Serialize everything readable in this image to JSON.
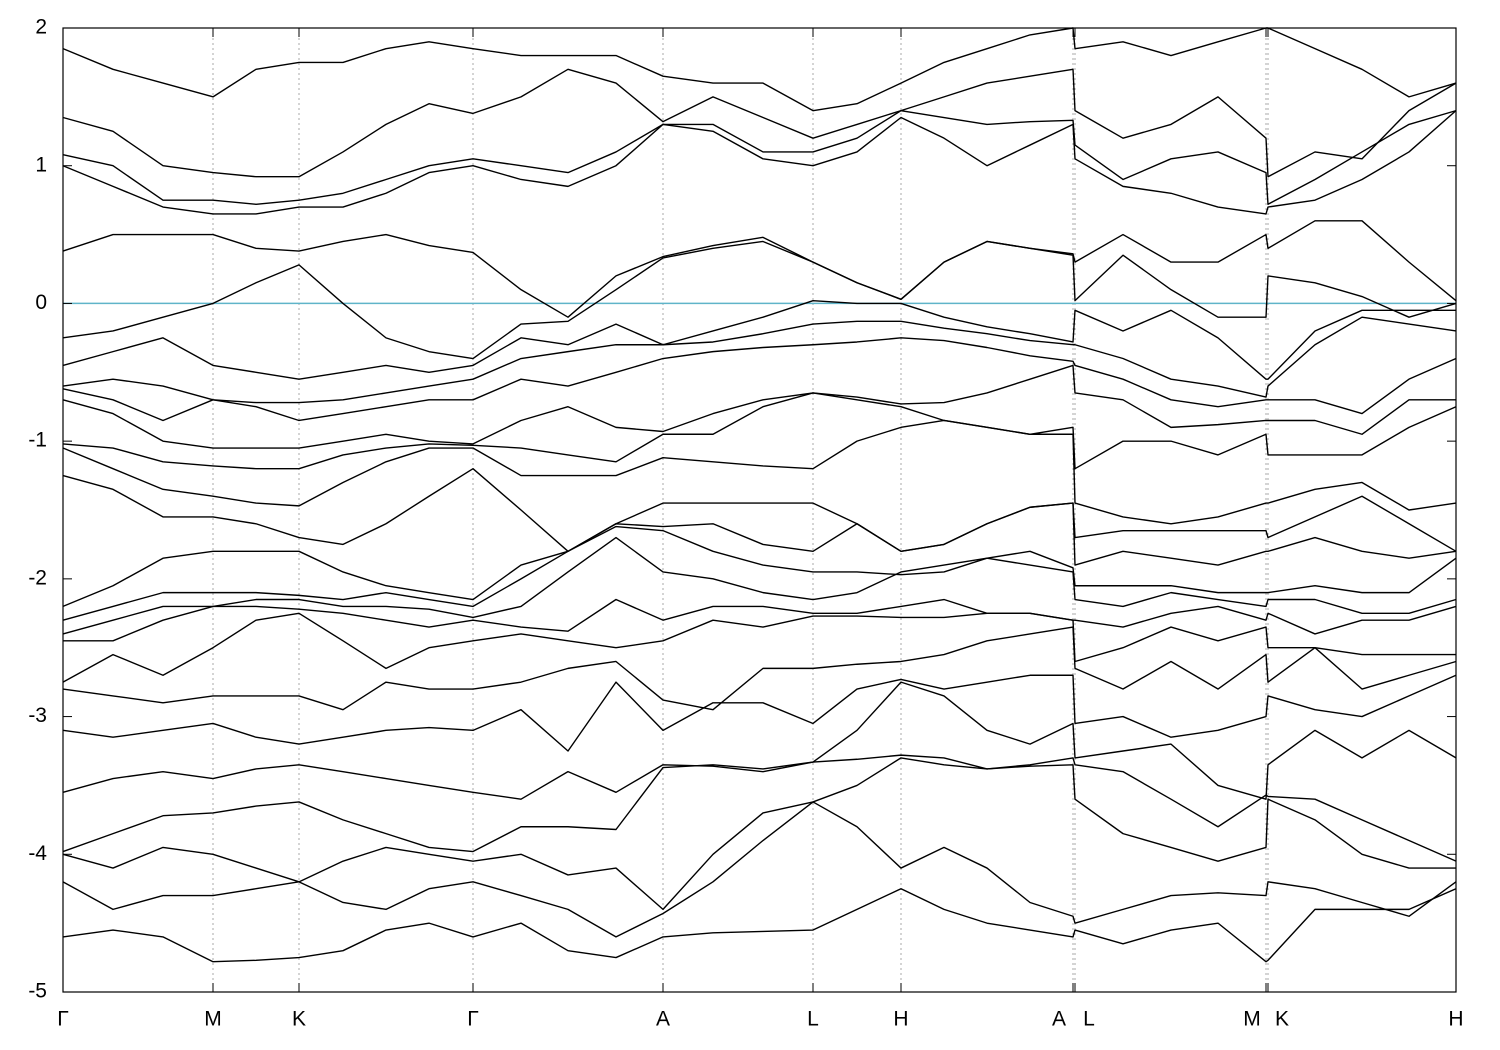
{
  "chart_data": {
    "type": "line",
    "x": [
      0,
      50,
      100,
      150,
      193,
      236,
      280,
      323,
      366,
      410,
      458,
      505,
      553,
      600,
      650,
      700,
      750,
      794,
      838,
      881,
      924,
      967,
      1010,
      1012,
      1060,
      1108,
      1155,
      1203,
      1205,
      1252,
      1299,
      1346,
      1393
    ],
    "xlim": [
      0,
      1393
    ],
    "ylim": [
      -5,
      2
    ],
    "yticks": [
      -5,
      -4,
      -3,
      -2,
      -1,
      0,
      1,
      2
    ],
    "xticks": [
      {
        "value": 0,
        "label": "Γ"
      },
      {
        "value": 150,
        "label": "M"
      },
      {
        "value": 236,
        "label": "K"
      },
      {
        "value": 410,
        "label": "Γ"
      },
      {
        "value": 600,
        "label": "A"
      },
      {
        "value": 750,
        "label": "L"
      },
      {
        "value": 838,
        "label": "H"
      },
      {
        "value": 1010,
        "label": "A"
      },
      {
        "value": 1012,
        "label": "L"
      },
      {
        "value": 1203,
        "label": "M"
      },
      {
        "value": 1205,
        "label": "K"
      },
      {
        "value": 1393,
        "label": "H"
      }
    ],
    "grid": "x",
    "hline": {
      "value": 0,
      "color": "#5fb4c9"
    },
    "series": [
      {
        "color": "#000000",
        "values": [
          -4.6,
          -4.55,
          -4.6,
          -4.78,
          -4.77,
          -4.75,
          -4.7,
          -4.55,
          -4.5,
          -4.6,
          -4.5,
          -4.7,
          -4.75,
          -4.6,
          -4.57,
          -4.56,
          -4.55,
          -4.4,
          -4.25,
          -4.4,
          -4.5,
          -4.55,
          -4.6,
          -4.55,
          -4.65,
          -4.55,
          -4.5,
          -4.78,
          -4.77,
          -4.4,
          -4.4,
          -4.4,
          -4.25
        ]
      },
      {
        "color": "#000000",
        "values": [
          -4.2,
          -4.4,
          -4.3,
          -4.3,
          -4.25,
          -4.2,
          -4.35,
          -4.4,
          -4.25,
          -4.2,
          -4.3,
          -4.4,
          -4.6,
          -4.43,
          -4.2,
          -3.9,
          -3.62,
          -3.8,
          -4.1,
          -3.95,
          -4.1,
          -4.35,
          -4.45,
          -4.5,
          -4.4,
          -4.3,
          -4.28,
          -4.3,
          -4.2,
          -4.25,
          -4.35,
          -4.45,
          -4.2
        ]
      },
      {
        "color": "#000000",
        "values": [
          -4.0,
          -4.1,
          -3.95,
          -4.0,
          -4.1,
          -4.2,
          -4.05,
          -3.95,
          -4.0,
          -4.05,
          -4.0,
          -4.15,
          -4.1,
          -4.4,
          -4.0,
          -3.7,
          -3.62,
          -3.5,
          -3.3,
          -3.35,
          -3.38,
          -3.36,
          -3.35,
          -3.6,
          -3.85,
          -3.95,
          -4.05,
          -3.95,
          -3.6,
          -3.75,
          -4.0,
          -4.1,
          -4.1
        ]
      },
      {
        "color": "#000000",
        "values": [
          -3.98,
          -3.85,
          -3.72,
          -3.7,
          -3.65,
          -3.62,
          -3.75,
          -3.85,
          -3.95,
          -3.98,
          -3.8,
          -3.8,
          -3.82,
          -3.37,
          -3.35,
          -3.38,
          -3.33,
          -3.31,
          -3.28,
          -3.3,
          -3.38,
          -3.35,
          -3.3,
          -3.35,
          -3.4,
          -3.6,
          -3.8,
          -3.57,
          -3.58,
          -3.6,
          -3.75,
          -3.9,
          -4.05
        ]
      },
      {
        "color": "#000000",
        "values": [
          -3.55,
          -3.45,
          -3.4,
          -3.45,
          -3.38,
          -3.35,
          -3.4,
          -3.45,
          -3.5,
          -3.55,
          -3.6,
          -3.4,
          -3.55,
          -3.35,
          -3.36,
          -3.4,
          -3.33,
          -3.1,
          -2.75,
          -2.85,
          -3.1,
          -3.2,
          -3.05,
          -3.3,
          -3.25,
          -3.2,
          -3.5,
          -3.6,
          -3.35,
          -3.1,
          -3.3,
          -3.1,
          -3.3
        ]
      },
      {
        "color": "#000000",
        "values": [
          -3.1,
          -3.15,
          -3.1,
          -3.05,
          -3.15,
          -3.2,
          -3.15,
          -3.1,
          -3.08,
          -3.1,
          -2.95,
          -3.25,
          -2.75,
          -3.1,
          -2.9,
          -2.9,
          -3.05,
          -2.8,
          -2.73,
          -2.8,
          -2.75,
          -2.7,
          -2.7,
          -3.05,
          -3.0,
          -3.15,
          -3.1,
          -3.0,
          -2.85,
          -2.95,
          -3.0,
          -2.85,
          -2.7
        ]
      },
      {
        "color": "#000000",
        "values": [
          -2.8,
          -2.85,
          -2.9,
          -2.85,
          -2.85,
          -2.85,
          -2.95,
          -2.75,
          -2.8,
          -2.8,
          -2.75,
          -2.65,
          -2.6,
          -2.88,
          -2.95,
          -2.65,
          -2.65,
          -2.62,
          -2.6,
          -2.55,
          -2.45,
          -2.4,
          -2.35,
          -2.65,
          -2.8,
          -2.6,
          -2.8,
          -2.55,
          -2.75,
          -2.5,
          -2.8,
          -2.7,
          -2.6
        ]
      },
      {
        "color": "#000000",
        "values": [
          -2.75,
          -2.55,
          -2.7,
          -2.5,
          -2.3,
          -2.25,
          -2.45,
          -2.65,
          -2.5,
          -2.45,
          -2.4,
          -2.45,
          -2.5,
          -2.45,
          -2.3,
          -2.35,
          -2.27,
          -2.27,
          -2.28,
          -2.28,
          -2.25,
          -2.25,
          -2.3,
          -2.6,
          -2.5,
          -2.35,
          -2.45,
          -2.35,
          -2.5,
          -2.5,
          -2.55,
          -2.55,
          -2.55
        ]
      },
      {
        "color": "#000000",
        "values": [
          -2.45,
          -2.45,
          -2.3,
          -2.2,
          -2.2,
          -2.22,
          -2.25,
          -2.3,
          -2.35,
          -2.3,
          -2.35,
          -2.38,
          -2.15,
          -2.3,
          -2.2,
          -2.2,
          -2.25,
          -2.25,
          -2.2,
          -2.15,
          -2.25,
          -2.25,
          -2.3,
          -2.3,
          -2.35,
          -2.25,
          -2.2,
          -2.3,
          -2.25,
          -2.4,
          -2.3,
          -2.3,
          -2.2
        ]
      },
      {
        "color": "#000000",
        "values": [
          -2.4,
          -2.3,
          -2.2,
          -2.2,
          -2.15,
          -2.15,
          -2.2,
          -2.2,
          -2.22,
          -2.28,
          -2.2,
          -1.95,
          -1.7,
          -1.95,
          -2.0,
          -2.1,
          -2.15,
          -2.1,
          -1.95,
          -1.9,
          -1.85,
          -1.9,
          -1.95,
          -2.15,
          -2.2,
          -2.1,
          -2.15,
          -2.2,
          -2.15,
          -2.15,
          -2.25,
          -2.25,
          -2.15
        ]
      },
      {
        "color": "#000000",
        "values": [
          -2.3,
          -2.2,
          -2.1,
          -2.1,
          -2.1,
          -2.12,
          -2.15,
          -2.1,
          -2.15,
          -2.2,
          -2.0,
          -1.8,
          -1.62,
          -1.65,
          -1.8,
          -1.9,
          -1.95,
          -1.95,
          -1.97,
          -1.95,
          -1.85,
          -1.8,
          -1.92,
          -2.05,
          -2.05,
          -2.05,
          -2.1,
          -2.1,
          -2.1,
          -2.05,
          -2.1,
          -2.1,
          -1.85
        ]
      },
      {
        "color": "#000000",
        "values": [
          -2.2,
          -2.05,
          -1.85,
          -1.8,
          -1.8,
          -1.8,
          -1.95,
          -2.05,
          -2.1,
          -2.15,
          -1.9,
          -1.8,
          -1.6,
          -1.62,
          -1.6,
          -1.75,
          -1.8,
          -1.6,
          -1.8,
          -1.75,
          -1.6,
          -1.48,
          -1.45,
          -1.9,
          -1.8,
          -1.85,
          -1.9,
          -1.8,
          -1.8,
          -1.7,
          -1.8,
          -1.85,
          -1.8
        ]
      },
      {
        "color": "#000000",
        "values": [
          -1.25,
          -1.35,
          -1.55,
          -1.55,
          -1.6,
          -1.7,
          -1.75,
          -1.6,
          -1.4,
          -1.2,
          -1.5,
          -1.8,
          -1.6,
          -1.45,
          -1.45,
          -1.45,
          -1.45,
          -1.6,
          -1.8,
          -1.75,
          -1.6,
          -1.48,
          -1.45,
          -1.7,
          -1.65,
          -1.65,
          -1.65,
          -1.65,
          -1.7,
          -1.55,
          -1.4,
          -1.6,
          -1.8
        ]
      },
      {
        "color": "#000000",
        "values": [
          -1.05,
          -1.2,
          -1.35,
          -1.4,
          -1.45,
          -1.47,
          -1.3,
          -1.15,
          -1.05,
          -1.05,
          -1.25,
          -1.25,
          -1.25,
          -1.12,
          -1.15,
          -1.18,
          -1.2,
          -1.0,
          -0.9,
          -0.85,
          -0.9,
          -0.95,
          -0.95,
          -1.45,
          -1.55,
          -1.6,
          -1.55,
          -1.45,
          -1.45,
          -1.35,
          -1.3,
          -1.5,
          -1.45
        ]
      },
      {
        "color": "#000000",
        "values": [
          -1.02,
          -1.05,
          -1.15,
          -1.18,
          -1.2,
          -1.2,
          -1.1,
          -1.05,
          -1.02,
          -1.03,
          -1.05,
          -1.1,
          -1.15,
          -0.95,
          -0.95,
          -0.75,
          -0.65,
          -0.7,
          -0.75,
          -0.85,
          -0.9,
          -0.95,
          -0.9,
          -1.2,
          -1.0,
          -1.0,
          -1.1,
          -0.95,
          -1.1,
          -1.1,
          -1.1,
          -0.9,
          -0.75
        ]
      },
      {
        "color": "#000000",
        "values": [
          -0.7,
          -0.8,
          -1.0,
          -1.05,
          -1.05,
          -1.05,
          -1.0,
          -0.95,
          -1.0,
          -1.02,
          -0.85,
          -0.75,
          -0.9,
          -0.93,
          -0.8,
          -0.7,
          -0.65,
          -0.68,
          -0.73,
          -0.72,
          -0.65,
          -0.55,
          -0.45,
          -0.65,
          -0.7,
          -0.9,
          -0.88,
          -0.85,
          -0.85,
          -0.85,
          -0.95,
          -0.7,
          -0.7
        ]
      },
      {
        "color": "#000000",
        "values": [
          -0.62,
          -0.7,
          -0.85,
          -0.7,
          -0.75,
          -0.85,
          -0.8,
          -0.75,
          -0.7,
          -0.7,
          -0.55,
          -0.6,
          -0.5,
          -0.4,
          -0.35,
          -0.32,
          -0.3,
          -0.28,
          -0.25,
          -0.27,
          -0.32,
          -0.38,
          -0.42,
          -0.45,
          -0.55,
          -0.7,
          -0.75,
          -0.7,
          -0.7,
          -0.7,
          -0.8,
          -0.55,
          -0.4
        ]
      },
      {
        "color": "#000000",
        "values": [
          -0.6,
          -0.55,
          -0.6,
          -0.7,
          -0.72,
          -0.72,
          -0.7,
          -0.65,
          -0.6,
          -0.55,
          -0.4,
          -0.35,
          -0.3,
          -0.3,
          -0.28,
          -0.22,
          -0.15,
          -0.13,
          -0.13,
          -0.18,
          -0.22,
          -0.27,
          -0.3,
          -0.3,
          -0.4,
          -0.55,
          -0.6,
          -0.68,
          -0.6,
          -0.3,
          -0.1,
          -0.15,
          -0.2
        ]
      },
      {
        "color": "#000000",
        "values": [
          -0.45,
          -0.35,
          -0.25,
          -0.45,
          -0.5,
          -0.55,
          -0.5,
          -0.45,
          -0.5,
          -0.45,
          -0.25,
          -0.3,
          -0.15,
          -0.3,
          -0.2,
          -0.1,
          0.02,
          0.0,
          0.0,
          -0.1,
          -0.17,
          -0.22,
          -0.28,
          -0.05,
          -0.2,
          -0.05,
          -0.25,
          -0.55,
          -0.55,
          -0.2,
          -0.05,
          -0.05,
          -0.05
        ]
      },
      {
        "color": "#000000",
        "values": [
          -0.25,
          -0.2,
          -0.1,
          0.0,
          0.15,
          0.28,
          0.0,
          -0.25,
          -0.35,
          -0.4,
          -0.15,
          -0.13,
          0.1,
          0.33,
          0.4,
          0.45,
          0.3,
          0.15,
          0.03,
          0.3,
          0.45,
          0.4,
          0.35,
          0.02,
          0.35,
          0.1,
          -0.1,
          -0.1,
          0.2,
          0.15,
          0.05,
          -0.1,
          0.0
        ]
      },
      {
        "color": "#000000",
        "values": [
          0.38,
          0.5,
          0.5,
          0.5,
          0.4,
          0.38,
          0.45,
          0.5,
          0.42,
          0.37,
          0.1,
          -0.1,
          0.2,
          0.34,
          0.42,
          0.48,
          0.3,
          0.15,
          0.03,
          0.3,
          0.45,
          0.4,
          0.36,
          0.3,
          0.5,
          0.3,
          0.3,
          0.5,
          0.4,
          0.6,
          0.6,
          0.3,
          0.02
        ]
      },
      {
        "color": "#000000",
        "values": [
          1.0,
          0.85,
          0.7,
          0.65,
          0.65,
          0.7,
          0.7,
          0.8,
          0.95,
          1.0,
          0.9,
          0.85,
          1.0,
          1.3,
          1.25,
          1.05,
          1.0,
          1.1,
          1.35,
          1.2,
          1.0,
          1.15,
          1.3,
          1.05,
          0.85,
          0.8,
          0.7,
          0.65,
          0.7,
          0.75,
          0.9,
          1.1,
          1.4
        ]
      },
      {
        "color": "#000000",
        "values": [
          1.08,
          1.0,
          0.75,
          0.75,
          0.72,
          0.75,
          0.8,
          0.9,
          1.0,
          1.05,
          1.0,
          0.95,
          1.1,
          1.3,
          1.3,
          1.1,
          1.1,
          1.2,
          1.4,
          1.35,
          1.3,
          1.32,
          1.33,
          1.15,
          0.9,
          1.05,
          1.1,
          0.95,
          0.72,
          0.9,
          1.1,
          1.3,
          1.4
        ]
      },
      {
        "color": "#000000",
        "values": [
          1.35,
          1.25,
          1.0,
          0.95,
          0.92,
          0.92,
          1.1,
          1.3,
          1.45,
          1.38,
          1.5,
          1.7,
          1.6,
          1.32,
          1.5,
          1.35,
          1.2,
          1.3,
          1.4,
          1.5,
          1.6,
          1.65,
          1.7,
          1.4,
          1.2,
          1.3,
          1.5,
          1.2,
          0.92,
          1.1,
          1.05,
          1.4,
          1.6
        ]
      },
      {
        "color": "#000000",
        "values": [
          1.85,
          1.7,
          1.6,
          1.5,
          1.7,
          1.75,
          1.75,
          1.85,
          1.9,
          1.85,
          1.8,
          1.8,
          1.8,
          1.65,
          1.6,
          1.6,
          1.4,
          1.45,
          1.6,
          1.75,
          1.85,
          1.95,
          2.0,
          1.85,
          1.9,
          1.8,
          1.9,
          2.0,
          2.0,
          1.85,
          1.7,
          1.5,
          1.6
        ]
      }
    ]
  }
}
